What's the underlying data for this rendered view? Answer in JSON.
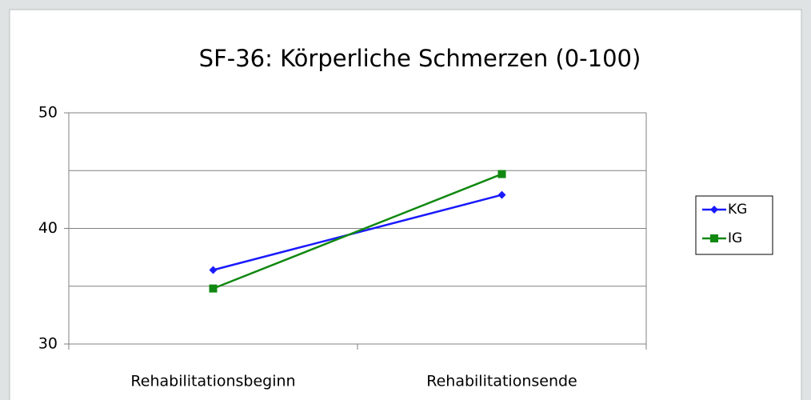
{
  "chart_data": {
    "type": "line",
    "title": "SF-36: Körperliche Schmerzen (0-100)",
    "categories": [
      "Rehabilitationsbeginn",
      "Rehabilitationsende"
    ],
    "series": [
      {
        "name": "KG",
        "color": "#1a1aff",
        "marker": "diamond",
        "values": [
          36.4,
          42.9
        ]
      },
      {
        "name": "IG",
        "color": "#118811",
        "marker": "square",
        "values": [
          34.8,
          44.7
        ]
      }
    ],
    "ylim": [
      30,
      50
    ],
    "yticks": [
      30,
      40,
      50
    ],
    "grid_lines": [
      35,
      40,
      45,
      50
    ],
    "legend": "right"
  }
}
